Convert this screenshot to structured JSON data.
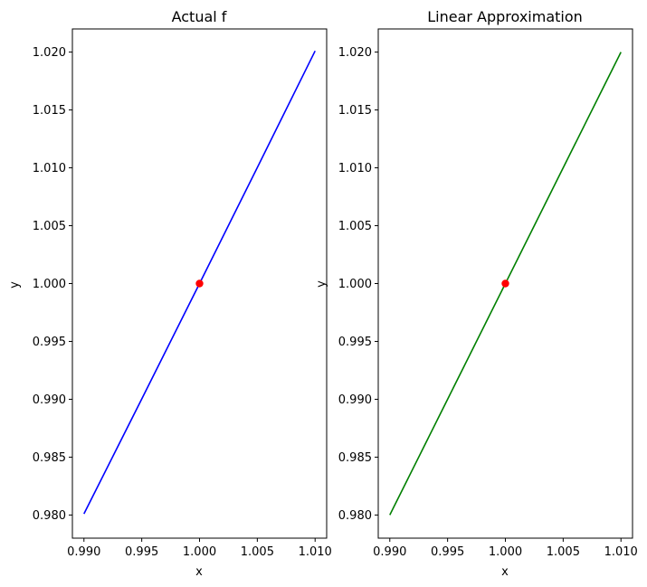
{
  "chart_data": [
    {
      "type": "line",
      "title": "Actual f",
      "xlabel": "x",
      "ylabel": "y",
      "xlim": [
        0.989,
        1.011
      ],
      "ylim": [
        0.978,
        1.022
      ],
      "xticks": [
        "0.990",
        "0.995",
        "1.000",
        "1.005",
        "1.010"
      ],
      "yticks": [
        "0.980",
        "0.985",
        "0.990",
        "0.995",
        "1.000",
        "1.005",
        "1.010",
        "1.015",
        "1.020"
      ],
      "grid": false,
      "series": [
        {
          "color": "#0000ff",
          "x": [
            0.99,
            0.995,
            1.0,
            1.005,
            1.01
          ],
          "y": [
            0.9801,
            0.990025,
            1.0,
            1.010025,
            1.0201
          ]
        }
      ],
      "points": [
        {
          "x": 1.0,
          "y": 1.0,
          "color": "#ff0000"
        }
      ]
    },
    {
      "type": "line",
      "title": "Linear Approximation",
      "xlabel": "x",
      "ylabel": "y",
      "xlim": [
        0.989,
        1.011
      ],
      "ylim": [
        0.978,
        1.022
      ],
      "xticks": [
        "0.990",
        "0.995",
        "1.000",
        "1.005",
        "1.010"
      ],
      "yticks": [
        "0.980",
        "0.985",
        "0.990",
        "0.995",
        "1.000",
        "1.005",
        "1.010",
        "1.015",
        "1.020"
      ],
      "grid": false,
      "series": [
        {
          "color": "#008000",
          "x": [
            0.99,
            1.01
          ],
          "y": [
            0.98,
            1.02
          ]
        }
      ],
      "points": [
        {
          "x": 1.0,
          "y": 1.0,
          "color": "#ff0000"
        }
      ]
    }
  ]
}
